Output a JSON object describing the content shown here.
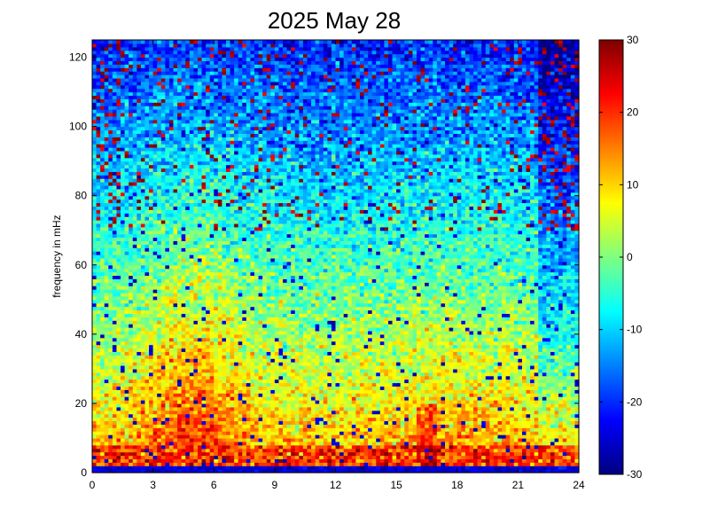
{
  "chart_data": {
    "type": "heatmap",
    "title": "2025 May 28",
    "xlabel": "",
    "ylabel": "frequency in mHz",
    "xlim": [
      0,
      24
    ],
    "ylim": [
      0,
      125
    ],
    "x_ticks": [
      0,
      3,
      6,
      9,
      12,
      15,
      18,
      21,
      24
    ],
    "y_ticks": [
      0,
      20,
      40,
      60,
      80,
      100,
      120
    ],
    "colorbar": {
      "colormap": "jet",
      "clim": [
        -30,
        30
      ],
      "ticks": [
        -30,
        -20,
        -10,
        0,
        10,
        20,
        30
      ]
    },
    "grid": false,
    "x_bins": 120,
    "y_bins": 125,
    "seed": 20250528,
    "features": {
      "low_band_mHz": [
        1,
        8
      ],
      "low_band_level": 25,
      "gap_row_mHz": [
        0,
        1
      ],
      "gap_level": -25,
      "active_hours": [
        3,
        7
      ],
      "active_peak_level": 8,
      "quiet_hours": [
        22,
        24
      ],
      "quiet_high_freq_level": -22,
      "bursts_hours": [
        16,
        17
      ]
    }
  }
}
